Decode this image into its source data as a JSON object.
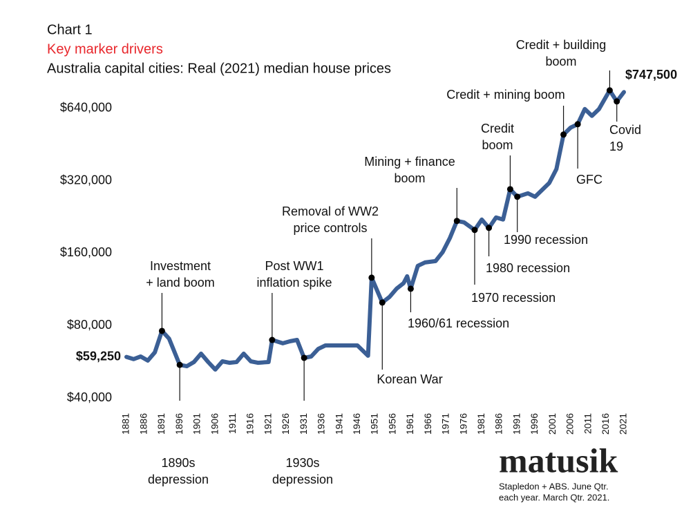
{
  "chart_data": {
    "type": "line",
    "chart_label": "Chart 1",
    "subtitle": "Key marker drivers",
    "title": "Australia capital cities: Real (2021) median house prices",
    "brand": "matusik",
    "source": [
      "Stapledon + ABS.  June Qtr.",
      "each year.  March Qtr. 2021."
    ],
    "log_scale": true,
    "ylim": [
      40000,
      800000
    ],
    "yticks": [
      {
        "value": 40000,
        "label": "$40,000"
      },
      {
        "value": 80000,
        "label": "$80,000"
      },
      {
        "value": 160000,
        "label": "$160,000"
      },
      {
        "value": 320000,
        "label": "$320,000"
      },
      {
        "value": 640000,
        "label": "$640,000"
      }
    ],
    "xlim": [
      1881,
      2021
    ],
    "xticks": [
      1881,
      1886,
      1891,
      1896,
      1901,
      1906,
      1911,
      1916,
      1921,
      1926,
      1931,
      1936,
      1941,
      1946,
      1951,
      1956,
      1961,
      1966,
      1971,
      1976,
      1981,
      1986,
      1991,
      1996,
      2001,
      2006,
      2011,
      2016,
      2021
    ],
    "series": [
      {
        "color": "#3b5f95",
        "x": [
          1881,
          1883,
          1885,
          1887,
          1889,
          1891,
          1893,
          1896,
          1898,
          1900,
          1902,
          1904,
          1906,
          1908,
          1910,
          1912,
          1914,
          1916,
          1918,
          1921,
          1922,
          1925,
          1927,
          1929,
          1931,
          1933,
          1935,
          1937,
          1940,
          1943,
          1946,
          1948,
          1949,
          1950,
          1953,
          1955,
          1957,
          1959,
          1960,
          1961,
          1963,
          1965,
          1968,
          1970,
          1972,
          1974,
          1976,
          1979,
          1981,
          1983,
          1985,
          1987,
          1989,
          1991,
          1994,
          1996,
          1998,
          2000,
          2002,
          2004,
          2006,
          2008,
          2010,
          2012,
          2014,
          2016,
          2017,
          2019,
          2021
        ],
        "values": [
          59250,
          58000,
          59500,
          57200,
          61900,
          76000,
          70600,
          54900,
          54200,
          56400,
          61100,
          56400,
          52500,
          56800,
          56000,
          56400,
          61100,
          56800,
          56000,
          56400,
          69700,
          67500,
          68800,
          69700,
          58700,
          59500,
          64000,
          66100,
          66100,
          66100,
          66100,
          61900,
          59900,
          126500,
          99700,
          105100,
          113800,
          120000,
          128200,
          113800,
          141600,
          146300,
          148300,
          161600,
          184500,
          217700,
          214800,
          199700,
          220600,
          203700,
          225000,
          220600,
          295000,
          274400,
          283600,
          274400,
          293100,
          313200,
          357500,
          497700,
          531800,
          549600,
          635700,
          595100,
          635700,
          716100,
          760000,
          683600,
          747500
        ],
        "value_labels": [
          "$59,250",
          null,
          null,
          null,
          null,
          null,
          null,
          null,
          null,
          null,
          null,
          null,
          null,
          null,
          null,
          null,
          null,
          null,
          null,
          null,
          null,
          null,
          null,
          null,
          null,
          null,
          null,
          null,
          null,
          null,
          null,
          null,
          null,
          null,
          null,
          null,
          null,
          null,
          null,
          null,
          null,
          null,
          null,
          null,
          null,
          null,
          null,
          null,
          null,
          null,
          null,
          null,
          null,
          null,
          null,
          null,
          null,
          null,
          null,
          null,
          null,
          null,
          null,
          null,
          null,
          null,
          null,
          null,
          "$747,500"
        ]
      }
    ],
    "annotations": [
      {
        "x": 1891,
        "lines": [
          "Investment",
          "+ land boom"
        ]
      },
      {
        "x": 1896,
        "lines": [
          "1890s",
          "depression"
        ]
      },
      {
        "x": 1922,
        "lines": [
          "Post WW1",
          "inflation spike"
        ]
      },
      {
        "x": 1931,
        "lines": [
          "1930s",
          "depression"
        ]
      },
      {
        "x": 1950,
        "lines": [
          "Removal of WW2",
          "price controls"
        ]
      },
      {
        "x": 1953,
        "lines": [
          "Korean War"
        ]
      },
      {
        "x": 1961,
        "lines": [
          "1960/61 recession"
        ]
      },
      {
        "x": 1974,
        "lines": [
          "Mining + finance",
          "boom"
        ]
      },
      {
        "x": 1979,
        "lines": [
          "1970 recession"
        ]
      },
      {
        "x": 1983,
        "lines": [
          "1980 recession"
        ]
      },
      {
        "x": 1991,
        "lines": [
          "1990 recession"
        ]
      },
      {
        "x": 1989,
        "lines": [
          "Credit",
          "boom"
        ]
      },
      {
        "x": 2004,
        "lines": [
          "Credit + mining boom"
        ]
      },
      {
        "x": 2008,
        "lines": [
          "GFC"
        ]
      },
      {
        "x": 2017,
        "lines": [
          "Credit + building",
          "boom"
        ]
      },
      {
        "x": 2019,
        "lines": [
          "Covid",
          "19"
        ]
      }
    ]
  }
}
